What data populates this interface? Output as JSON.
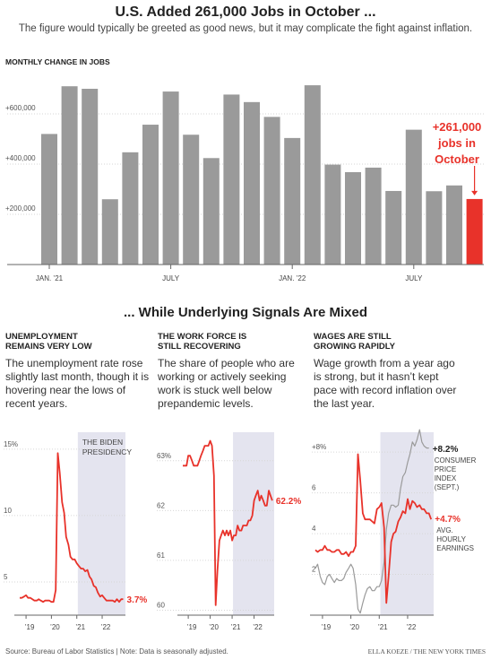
{
  "header": {
    "title": "U.S. Added 261,000 Jobs in October ...",
    "subtitle": "The figure would typically be greeted as good news, but it may complicate the fight against inflation."
  },
  "section2": {
    "title": "... While Underlying Signals Are Mixed"
  },
  "panels": [
    {
      "title_line1": "UNEMPLOYMENT",
      "title_line2": "REMAINS VERY LOW",
      "desc": "The unemployment rate rose slightly last month, though it is hovering near the lows of recent years."
    },
    {
      "title_line1": "THE WORK FORCE IS",
      "title_line2": "STILL RECOVERING",
      "desc": "The share of people who are working or actively seeking work is stuck well below prepandemic levels."
    },
    {
      "title_line1": "WAGES ARE STILL",
      "title_line2": "GROWING RAPIDLY",
      "desc": "Wage growth from a year ago is strong, but it hasn’t kept pace with record inflation over the last year."
    }
  ],
  "footer": {
    "source": "Source: Bureau of Labor Statistics | Note: Data is seasonally adjusted.",
    "credit": "ELLA KOEZE / THE NEW YORK TIMES"
  },
  "colors": {
    "bar": "#9a9a9a",
    "highlight": "#e8322a",
    "text": "#222222",
    "shade": "#e4e4ef",
    "gray_line": "#9a9a9a",
    "grid": "#d6d6d6"
  },
  "chart_data": [
    {
      "type": "bar",
      "ylabel": "MONTHLY CHANGE IN JOBS",
      "categories": [
        "Jan 2021",
        "Feb 2021",
        "Mar 2021",
        "Apr 2021",
        "May 2021",
        "Jun 2021",
        "Jul 2021",
        "Aug 2021",
        "Sep 2021",
        "Oct 2021",
        "Nov 2021",
        "Dec 2021",
        "Jan 2022",
        "Feb 2022",
        "Mar 2022",
        "Apr 2022",
        "May 2022",
        "Jun 2022",
        "Jul 2022",
        "Aug 2022",
        "Sep 2022",
        "Oct 2022"
      ],
      "values": [
        520000,
        710000,
        700000,
        260000,
        447000,
        557000,
        689000,
        517000,
        424000,
        677000,
        647000,
        588000,
        504000,
        714000,
        398000,
        368000,
        386000,
        293000,
        537000,
        292000,
        315000,
        261000
      ],
      "highlight_index": 21,
      "x_tick_labels": [
        "JAN. ’21",
        "JULY",
        "JAN. ’22",
        "JULY"
      ],
      "x_tick_indices": [
        0,
        6,
        12,
        18
      ],
      "y_ticks": [
        200000,
        400000,
        600000
      ],
      "y_tick_labels": [
        "+200,000",
        "+400,000",
        "+600,000"
      ],
      "ylim": [
        0,
        750000
      ],
      "annotation": [
        "+261,000",
        "jobs in",
        "October"
      ],
      "grid": true
    },
    {
      "type": "line",
      "ylim": [
        2.5,
        16
      ],
      "y_ticks": [
        5,
        10,
        15
      ],
      "y_tick_labels": [
        "5",
        "10",
        "15%"
      ],
      "x_range": [
        2018.75,
        2022.917
      ],
      "x_ticks": [
        2019,
        2020,
        2021,
        2022
      ],
      "x_tick_labels": [
        "’19",
        "’20",
        "’21",
        "’22"
      ],
      "shaded_region": {
        "from": 2021.04,
        "to": 2022.917,
        "label_line1": "THE BIDEN",
        "label_line2": "PRESIDENCY"
      },
      "series": [
        {
          "color": "#e8322a",
          "end_label": "3.7%",
          "x": [
            2018.75,
            2018.83,
            2018.92,
            2019.0,
            2019.08,
            2019.17,
            2019.25,
            2019.33,
            2019.42,
            2019.5,
            2019.58,
            2019.67,
            2019.75,
            2019.83,
            2019.92,
            2020.0,
            2020.08,
            2020.17,
            2020.25,
            2020.33,
            2020.42,
            2020.5,
            2020.58,
            2020.67,
            2020.75,
            2020.83,
            2020.92,
            2021.0,
            2021.08,
            2021.17,
            2021.25,
            2021.33,
            2021.42,
            2021.5,
            2021.58,
            2021.67,
            2021.75,
            2021.83,
            2021.92,
            2022.0,
            2022.08,
            2022.17,
            2022.25,
            2022.33,
            2022.42,
            2022.5,
            2022.58,
            2022.67,
            2022.75,
            2022.83
          ],
          "y": [
            3.8,
            3.8,
            3.9,
            4.0,
            3.8,
            3.8,
            3.7,
            3.6,
            3.6,
            3.7,
            3.6,
            3.5,
            3.6,
            3.6,
            3.6,
            3.5,
            3.5,
            4.4,
            14.7,
            13.2,
            11.0,
            10.2,
            8.4,
            7.8,
            6.9,
            6.7,
            6.7,
            6.4,
            6.2,
            6.0,
            6.0,
            5.8,
            5.9,
            5.4,
            5.2,
            4.7,
            4.6,
            4.2,
            3.9,
            4.0,
            3.8,
            3.6,
            3.6,
            3.6,
            3.6,
            3.5,
            3.7,
            3.5,
            3.7,
            3.7
          ]
        }
      ]
    },
    {
      "type": "line",
      "ylim": [
        59.9,
        63.5
      ],
      "y_ticks": [
        60,
        61,
        62,
        63
      ],
      "y_tick_labels": [
        "60",
        "61",
        "62",
        "63%"
      ],
      "x_range": [
        2018.75,
        2022.917
      ],
      "x_ticks": [
        2019,
        2020,
        2021,
        2022
      ],
      "x_tick_labels": [
        "’19",
        "’20",
        "’21",
        "’22"
      ],
      "shaded_region": {
        "from": 2021.04,
        "to": 2022.917
      },
      "series": [
        {
          "color": "#e8322a",
          "end_label": "62.2%",
          "x": [
            2018.75,
            2018.83,
            2018.92,
            2019.0,
            2019.08,
            2019.17,
            2019.25,
            2019.33,
            2019.42,
            2019.5,
            2019.58,
            2019.67,
            2019.75,
            2019.83,
            2019.92,
            2020.0,
            2020.08,
            2020.17,
            2020.25,
            2020.33,
            2020.42,
            2020.5,
            2020.58,
            2020.67,
            2020.75,
            2020.83,
            2020.92,
            2021.0,
            2021.08,
            2021.17,
            2021.25,
            2021.33,
            2021.42,
            2021.5,
            2021.58,
            2021.67,
            2021.75,
            2021.83,
            2021.92,
            2022.0,
            2022.08,
            2022.17,
            2022.25,
            2022.33,
            2022.42,
            2022.5,
            2022.58,
            2022.67,
            2022.75,
            2022.83
          ],
          "y": [
            62.9,
            62.9,
            62.9,
            63.1,
            63.1,
            63.0,
            62.9,
            62.9,
            62.9,
            63.0,
            63.1,
            63.2,
            63.3,
            63.3,
            63.3,
            63.4,
            63.3,
            62.7,
            60.1,
            60.8,
            61.4,
            61.5,
            61.6,
            61.5,
            61.6,
            61.5,
            61.6,
            61.4,
            61.5,
            61.5,
            61.7,
            61.6,
            61.6,
            61.7,
            61.7,
            61.7,
            61.8,
            61.8,
            61.9,
            62.2,
            62.3,
            62.4,
            62.2,
            62.3,
            62.2,
            62.1,
            62.1,
            62.4,
            62.3,
            62.2
          ]
        }
      ]
    },
    {
      "type": "line",
      "ylim": [
        0,
        8.8
      ],
      "y_ticks": [
        2,
        4,
        6,
        8
      ],
      "y_tick_labels": [
        "2",
        "4",
        "6",
        "+8%"
      ],
      "x_range": [
        2018.75,
        2022.917
      ],
      "x_ticks": [
        2019,
        2020,
        2021,
        2022
      ],
      "x_tick_labels": [
        "’19",
        "’20",
        "’21",
        "’22"
      ],
      "shaded_region": {
        "from": 2021.04,
        "to": 2022.917
      },
      "series": [
        {
          "color": "#9a9a9a",
          "end_label": "+8.2%",
          "label_lines": [
            "CONSUMER",
            "PRICE",
            "INDEX",
            "(SEPT.)"
          ],
          "x": [
            2018.75,
            2018.83,
            2018.92,
            2019.0,
            2019.08,
            2019.17,
            2019.25,
            2019.33,
            2019.42,
            2019.5,
            2019.58,
            2019.67,
            2019.75,
            2019.83,
            2019.92,
            2020.0,
            2020.08,
            2020.17,
            2020.25,
            2020.33,
            2020.42,
            2020.5,
            2020.58,
            2020.67,
            2020.75,
            2020.83,
            2020.92,
            2021.0,
            2021.08,
            2021.17,
            2021.25,
            2021.33,
            2021.42,
            2021.5,
            2021.58,
            2021.67,
            2021.75,
            2021.83,
            2021.92,
            2022.0,
            2022.08,
            2022.17,
            2022.25,
            2022.33,
            2022.42,
            2022.5,
            2022.58,
            2022.67,
            2022.75
          ],
          "y": [
            2.3,
            2.5,
            1.9,
            1.6,
            1.5,
            1.9,
            2.0,
            1.8,
            1.6,
            1.8,
            1.7,
            1.7,
            1.8,
            2.1,
            2.3,
            2.5,
            2.3,
            1.5,
            0.3,
            0.1,
            0.6,
            1.0,
            1.3,
            1.4,
            1.2,
            1.2,
            1.4,
            1.4,
            1.7,
            2.6,
            4.2,
            5.0,
            5.4,
            5.4,
            5.3,
            5.4,
            6.2,
            6.8,
            7.0,
            7.5,
            7.9,
            8.5,
            8.3,
            8.6,
            9.1,
            8.5,
            8.3,
            8.2,
            8.2
          ]
        },
        {
          "color": "#e8322a",
          "end_label": "+4.7%",
          "label_lines": [
            "AVG.",
            "HOURLY",
            "EARNINGS"
          ],
          "x": [
            2018.75,
            2018.83,
            2018.92,
            2019.0,
            2019.08,
            2019.17,
            2019.25,
            2019.33,
            2019.42,
            2019.5,
            2019.58,
            2019.67,
            2019.75,
            2019.83,
            2019.92,
            2020.0,
            2020.08,
            2020.17,
            2020.25,
            2020.33,
            2020.42,
            2020.5,
            2020.58,
            2020.67,
            2020.75,
            2020.83,
            2020.92,
            2021.0,
            2021.08,
            2021.17,
            2021.25,
            2021.33,
            2021.42,
            2021.5,
            2021.58,
            2021.67,
            2021.75,
            2021.83,
            2021.92,
            2022.0,
            2022.08,
            2022.17,
            2022.25,
            2022.33,
            2022.42,
            2022.5,
            2022.58,
            2022.67,
            2022.75,
            2022.83
          ],
          "y": [
            3.2,
            3.1,
            3.2,
            3.2,
            3.4,
            3.2,
            3.2,
            3.1,
            3.1,
            3.2,
            3.2,
            3.0,
            3.0,
            3.1,
            2.9,
            3.1,
            3.1,
            3.4,
            7.9,
            6.6,
            5.0,
            4.7,
            4.7,
            4.7,
            4.6,
            4.5,
            5.2,
            5.3,
            5.5,
            4.3,
            0.6,
            1.9,
            3.6,
            4.0,
            4.1,
            4.6,
            4.8,
            5.1,
            5.0,
            5.7,
            5.2,
            5.6,
            5.5,
            5.3,
            5.4,
            5.2,
            5.2,
            5.0,
            5.0,
            4.7
          ]
        }
      ]
    }
  ]
}
